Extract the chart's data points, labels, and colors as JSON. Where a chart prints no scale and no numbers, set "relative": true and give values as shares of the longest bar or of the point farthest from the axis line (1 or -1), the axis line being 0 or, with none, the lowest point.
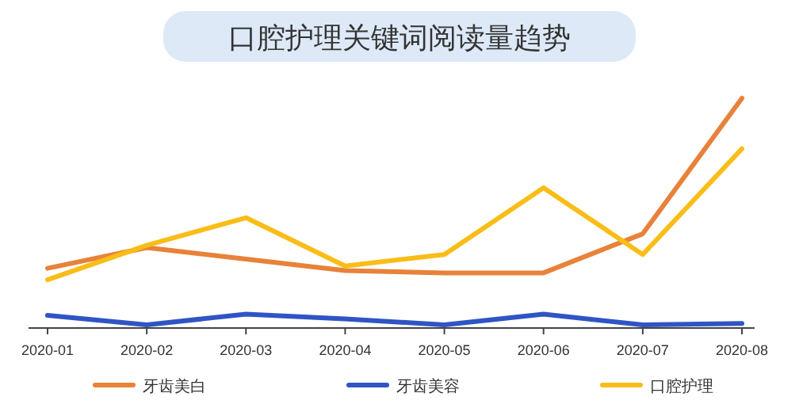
{
  "chart_data": {
    "type": "line",
    "title": "口腔护理关键词阅读量趋势",
    "relative": true,
    "legend": "bottom",
    "categories": [
      "2020-01",
      "2020-02",
      "2020-03",
      "2020-04",
      "2020-05",
      "2020-06",
      "2020-07",
      "2020-08"
    ],
    "series": [
      {
        "name": "牙齿美白",
        "color": "#e8823a",
        "values": [
          0.26,
          0.35,
          0.3,
          0.25,
          0.24,
          0.24,
          0.41,
          1
        ]
      },
      {
        "name": "牙齿美容",
        "color": "#2f55c4",
        "values": [
          0.055,
          0.014,
          0.06,
          0.04,
          0.014,
          0.06,
          0.014,
          0.02
        ]
      },
      {
        "name": "口腔护理",
        "color": "#f9bd17",
        "values": [
          0.21,
          0.36,
          0.48,
          0.27,
          0.32,
          0.61,
          0.32,
          0.78
        ]
      }
    ]
  }
}
